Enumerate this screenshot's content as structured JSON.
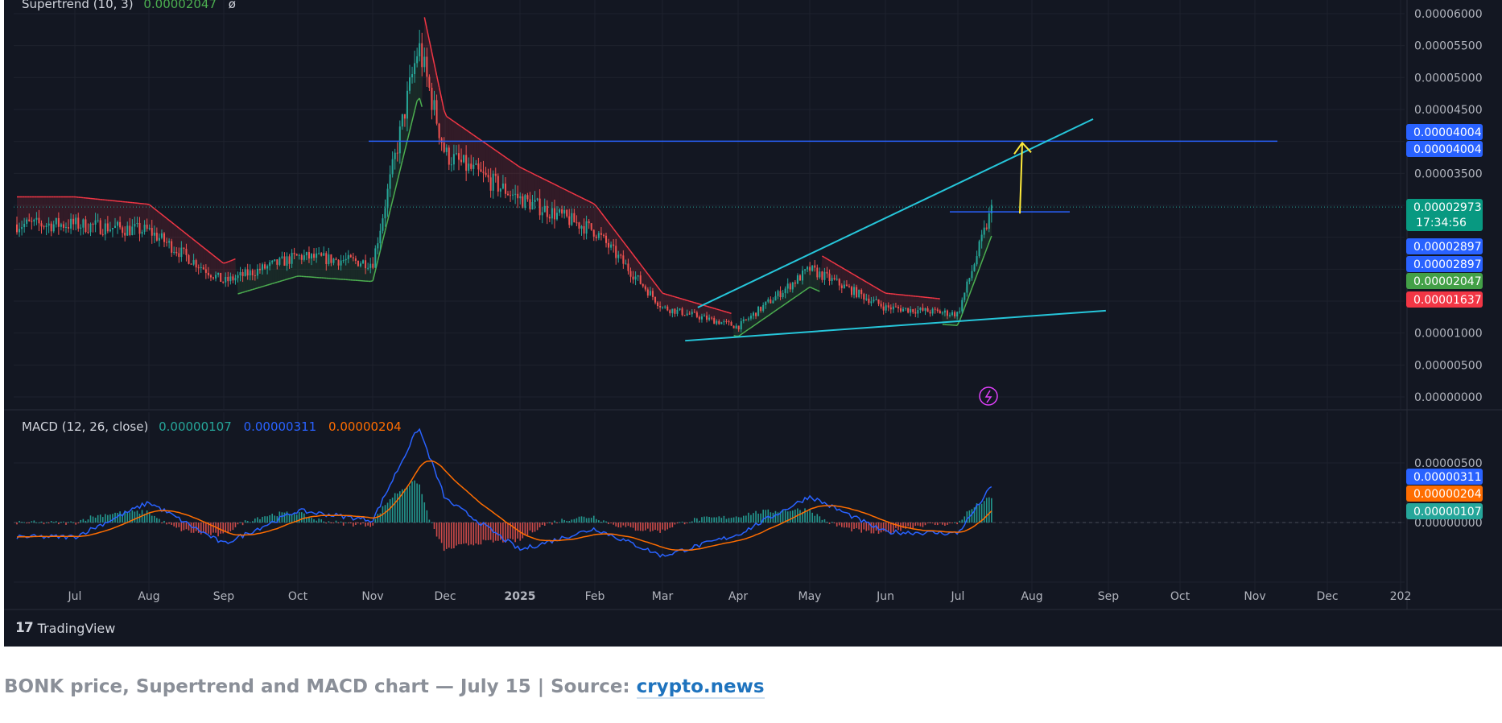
{
  "caption": {
    "text": "BONK price, Supertrend and MACD chart — July 15 | Source: ",
    "link_text": "crypto.news"
  },
  "branding": {
    "logo_mark": "17",
    "logo_text": "TradingView"
  },
  "colors": {
    "background": "#131722",
    "grid": "#1e222d",
    "up": "#26a69a",
    "down": "#ef5350",
    "supertrend_up": "#4caf50",
    "supertrend_down": "#f23645",
    "trendline": "#26c6da",
    "resistance": "#2962ff",
    "target_arrow": "#ffeb3b",
    "macd_line": "#2962ff",
    "signal_line": "#ff6d00"
  },
  "chart_data": [
    {
      "type": "candlestick",
      "indicator_legend": {
        "name": "Supertrend (10, 3)",
        "value": "0.00002047",
        "extra": "ø"
      },
      "x_ticks": [
        "Jul",
        "Aug",
        "Sep",
        "Oct",
        "Nov",
        "Dec",
        "2025",
        "Feb",
        "Mar",
        "Apr",
        "May",
        "Jun",
        "Jul",
        "Aug",
        "Sep",
        "Oct",
        "Nov",
        "Dec",
        "202"
      ],
      "y_ticks": [
        "0.00006000",
        "0.00005500",
        "0.00005000",
        "0.00004500",
        "0.00003500",
        "0.00001000",
        "0.00000500",
        "0.00000000"
      ],
      "ylim": [
        0,
        6.25e-05
      ],
      "price_close_approx": [
        {
          "x": "2024-07",
          "y": 2.7e-05
        },
        {
          "x": "2024-08",
          "y": 2.6e-05
        },
        {
          "x": "2024-09",
          "y": 1.8e-05
        },
        {
          "x": "2024-10",
          "y": 2.2e-05
        },
        {
          "x": "2024-11",
          "y": 2.1e-05
        },
        {
          "x": "2024-11-20",
          "y": 5.5e-05
        },
        {
          "x": "2024-12",
          "y": 3.8e-05
        },
        {
          "x": "2025-01",
          "y": 3.1e-05
        },
        {
          "x": "2025-02",
          "y": 2.6e-05
        },
        {
          "x": "2025-03",
          "y": 1.4e-05
        },
        {
          "x": "2025-04",
          "y": 1.1e-05
        },
        {
          "x": "2025-05",
          "y": 2e-05
        },
        {
          "x": "2025-06",
          "y": 1.4e-05
        },
        {
          "x": "2025-07-01",
          "y": 1.3e-05
        },
        {
          "x": "2025-07-15",
          "y": 2.973e-05
        }
      ],
      "price_labels": [
        {
          "text": "0.00004004",
          "color": "#2962ff",
          "value": 4.004e-05
        },
        {
          "text": "0.00004004",
          "color": "#2962ff",
          "value": 4.004e-05
        },
        {
          "text": "0.00002973",
          "sub": "17:34:56",
          "color": "#089981",
          "value": 2.973e-05
        },
        {
          "text": "0.00002897",
          "color": "#2962ff",
          "value": 2.897e-05
        },
        {
          "text": "0.00002897",
          "color": "#2962ff",
          "value": 2.897e-05
        },
        {
          "text": "0.00002047",
          "color": "#43a047",
          "value": 2.047e-05
        },
        {
          "text": "0.00001637",
          "color": "#f23645",
          "value": 1.637e-05
        }
      ],
      "drawings": {
        "horizontal_resistance": 4.004e-05,
        "local_high_line": 2.897e-05,
        "target_arrow_from": 2.897e-05,
        "target_arrow_to": 4.004e-05,
        "upper_trendline": [
          {
            "x": "2025-03-15",
            "y": 1.4e-05
          },
          {
            "x": "2025-08-25",
            "y": 4.35e-05
          }
        ],
        "lower_trendline": [
          {
            "x": "2025-03-10",
            "y": 8.8e-06
          },
          {
            "x": "2025-08-30",
            "y": 1.35e-05
          }
        ]
      }
    },
    {
      "type": "macd",
      "legend": {
        "name": "MACD (12, 26, close)",
        "histogram": "0.00000107",
        "macd": "0.00000311",
        "signal": "0.00000204"
      },
      "y_ticks": [
        "0.00000500",
        "0.00000000"
      ],
      "value_labels": [
        {
          "text": "0.00000311",
          "color": "#2962ff"
        },
        {
          "text": "0.00000204",
          "color": "#ff6d00"
        },
        {
          "text": "0.00000107",
          "color": "#26a69a"
        }
      ],
      "macd_approx": [
        {
          "x": "2024-07",
          "y": -1.2e-06
        },
        {
          "x": "2024-08",
          "y": 1.7e-06
        },
        {
          "x": "2024-09",
          "y": -1.8e-06
        },
        {
          "x": "2024-10",
          "y": 1e-06
        },
        {
          "x": "2024-11",
          "y": 2e-07
        },
        {
          "x": "2024-11-20",
          "y": 8e-06
        },
        {
          "x": "2024-12",
          "y": 2e-06
        },
        {
          "x": "2025-01",
          "y": -2.3e-06
        },
        {
          "x": "2025-02",
          "y": -5e-07
        },
        {
          "x": "2025-03",
          "y": -2.8e-06
        },
        {
          "x": "2025-04",
          "y": -1e-06
        },
        {
          "x": "2025-05",
          "y": 2.2e-06
        },
        {
          "x": "2025-06",
          "y": -8e-07
        },
        {
          "x": "2025-07-01",
          "y": -9e-07
        },
        {
          "x": "2025-07-15",
          "y": 3.11e-06
        }
      ]
    }
  ]
}
